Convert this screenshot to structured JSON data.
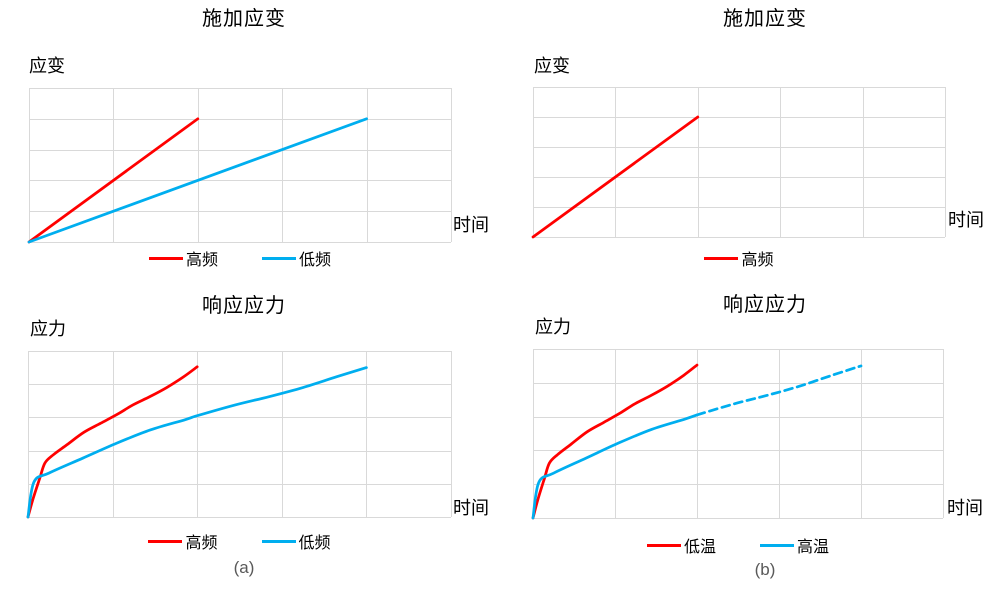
{
  "background": "#FFFFFF",
  "colors": {
    "red": "#FF0000",
    "blue": "#00AEEF",
    "grid": "#D9D9D9",
    "text": "#000000",
    "caption": "#595959"
  },
  "chart_data": [
    {
      "id": "applied-strain-two-frequencies",
      "type": "line",
      "title": "施加应变",
      "ylabel": "应变",
      "xlabel": "时间",
      "axes": {
        "x_ticks": [],
        "y_ticks": [],
        "note": "qualitative axes, no numeric ticks"
      },
      "grid": {
        "cols": 5,
        "rows": 5,
        "on": true
      },
      "legend_position": "bottom",
      "legend": [
        {
          "label": "高频",
          "color": "#FF0000"
        },
        {
          "label": "低频",
          "color": "#00AEEF"
        }
      ],
      "series": [
        {
          "name": "高频",
          "color": "#FF0000",
          "style": "solid",
          "points_normalized": [
            [
              0,
              0
            ],
            [
              0.4,
              0.8
            ]
          ]
        },
        {
          "name": "低频",
          "color": "#00AEEF",
          "style": "solid",
          "points_normalized": [
            [
              0,
              0
            ],
            [
              0.8,
              0.8
            ]
          ]
        }
      ]
    },
    {
      "id": "applied-strain-single-frequency",
      "type": "line",
      "title": "施加应变",
      "ylabel": "应变",
      "xlabel": "时间",
      "axes": {
        "x_ticks": [],
        "y_ticks": [],
        "note": "qualitative axes, no numeric ticks"
      },
      "grid": {
        "cols": 5,
        "rows": 5,
        "on": true
      },
      "legend_position": "bottom",
      "legend": [
        {
          "label": "高频",
          "color": "#FF0000"
        }
      ],
      "series": [
        {
          "name": "高频",
          "color": "#FF0000",
          "style": "solid",
          "points_normalized": [
            [
              0,
              0
            ],
            [
              0.4,
              0.8
            ]
          ]
        }
      ]
    },
    {
      "id": "response-stress-two-frequencies",
      "type": "line",
      "title": "响应应力",
      "ylabel": "应力",
      "xlabel": "时间",
      "caption": "(a)",
      "axes": {
        "x_ticks": [],
        "y_ticks": [],
        "note": "qualitative axes, no numeric ticks"
      },
      "grid": {
        "cols": 5,
        "rows": 5,
        "on": true
      },
      "legend_position": "bottom",
      "legend": [
        {
          "label": "高频",
          "color": "#FF0000"
        },
        {
          "label": "低频",
          "color": "#00AEEF"
        }
      ],
      "series": [
        {
          "name": "高频",
          "color": "#FF0000",
          "style": "solid",
          "points_normalized": [
            [
              0,
              0
            ],
            [
              0.012,
              0.11
            ],
            [
              0.028,
              0.235
            ],
            [
              0.04,
              0.325
            ],
            [
              0.06,
              0.375
            ],
            [
              0.092,
              0.435
            ],
            [
              0.132,
              0.51
            ],
            [
              0.172,
              0.565
            ],
            [
              0.212,
              0.62
            ],
            [
              0.248,
              0.675
            ],
            [
              0.288,
              0.725
            ],
            [
              0.328,
              0.78
            ],
            [
              0.368,
              0.845
            ],
            [
              0.4,
              0.905
            ]
          ]
        },
        {
          "name": "低频",
          "color": "#00AEEF",
          "style": "solid",
          "points_normalized": [
            [
              0,
              0
            ],
            [
              0.014,
              0.21
            ],
            [
              0.05,
              0.265
            ],
            [
              0.13,
              0.355
            ],
            [
              0.21,
              0.445
            ],
            [
              0.29,
              0.525
            ],
            [
              0.37,
              0.585
            ],
            [
              0.4,
              0.61
            ],
            [
              0.49,
              0.675
            ],
            [
              0.57,
              0.725
            ],
            [
              0.65,
              0.78
            ],
            [
              0.73,
              0.845
            ],
            [
              0.8,
              0.9
            ]
          ]
        }
      ]
    },
    {
      "id": "response-stress-two-temperatures",
      "type": "line",
      "title": "响应应力",
      "ylabel": "应力",
      "xlabel": "时间",
      "caption": "(b)",
      "axes": {
        "x_ticks": [],
        "y_ticks": [],
        "note": "qualitative axes, no numeric ticks"
      },
      "grid": {
        "cols": 5,
        "rows": 5,
        "on": true
      },
      "legend_position": "bottom",
      "legend": [
        {
          "label": "低温",
          "color": "#FF0000"
        },
        {
          "label": "高温",
          "color": "#00AEEF"
        }
      ],
      "series": [
        {
          "name": "低温",
          "color": "#FF0000",
          "style": "solid",
          "points_normalized": [
            [
              0,
              0
            ],
            [
              0.012,
              0.11
            ],
            [
              0.028,
              0.235
            ],
            [
              0.04,
              0.325
            ],
            [
              0.06,
              0.375
            ],
            [
              0.092,
              0.435
            ],
            [
              0.132,
              0.51
            ],
            [
              0.172,
              0.565
            ],
            [
              0.212,
              0.62
            ],
            [
              0.248,
              0.675
            ],
            [
              0.288,
              0.725
            ],
            [
              0.328,
              0.78
            ],
            [
              0.368,
              0.845
            ],
            [
              0.4,
              0.905
            ]
          ]
        },
        {
          "name": "高温",
          "color": "#00AEEF",
          "style": "solid",
          "points_normalized": [
            [
              0,
              0
            ],
            [
              0.014,
              0.21
            ],
            [
              0.05,
              0.265
            ],
            [
              0.13,
              0.355
            ],
            [
              0.21,
              0.445
            ],
            [
              0.29,
              0.525
            ],
            [
              0.37,
              0.585
            ],
            [
              0.4,
              0.61
            ]
          ]
        },
        {
          "name": "高温",
          "color": "#00AEEF",
          "style": "dashed",
          "points_normalized": [
            [
              0.4,
              0.61
            ],
            [
              0.49,
              0.675
            ],
            [
              0.57,
              0.725
            ],
            [
              0.65,
              0.78
            ],
            [
              0.73,
              0.845
            ],
            [
              0.8,
              0.9
            ]
          ]
        }
      ]
    }
  ]
}
